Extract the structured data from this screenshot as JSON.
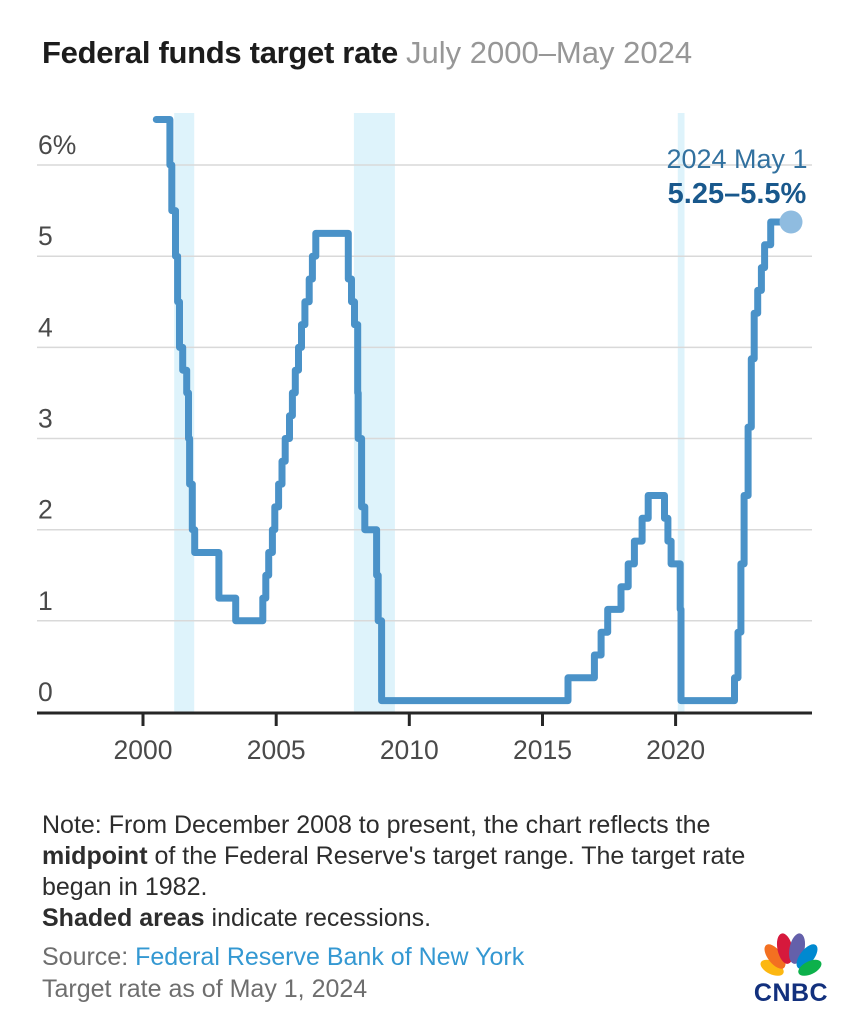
{
  "header": {
    "title": "Federal funds target rate",
    "subtitle": "July 2000–May 2024"
  },
  "chart_data": {
    "type": "line",
    "step": true,
    "title": "Federal funds target rate",
    "subtitle": "July 2000–May 2024",
    "xlabel": "",
    "ylabel": "",
    "x_range": [
      1996.02,
      2025.12
    ],
    "ylim": [
      0,
      6.56
    ],
    "grid": "horizontal",
    "x_axis": {
      "ticks": [
        {
          "value": 2000,
          "label": "2000"
        },
        {
          "value": 2005,
          "label": "2005"
        },
        {
          "value": 2010,
          "label": "2010"
        },
        {
          "value": 2015,
          "label": "2015"
        },
        {
          "value": 2020,
          "label": "2020"
        }
      ]
    },
    "y_axis": {
      "ticks": [
        {
          "value": 6,
          "label": "6%"
        },
        {
          "value": 5,
          "label": "5"
        },
        {
          "value": 4,
          "label": "4"
        },
        {
          "value": 3,
          "label": "3"
        },
        {
          "value": 2,
          "label": "2"
        },
        {
          "value": 1,
          "label": "1"
        },
        {
          "value": 0,
          "label": "0"
        }
      ]
    },
    "series": [
      {
        "name": "Federal funds target rate (midpoint of range from Dec 2008)",
        "points": [
          [
            2000.5,
            6.5
          ],
          [
            2001.01,
            6.0
          ],
          [
            2001.08,
            5.5
          ],
          [
            2001.22,
            5.0
          ],
          [
            2001.3,
            4.5
          ],
          [
            2001.37,
            4.0
          ],
          [
            2001.49,
            3.75
          ],
          [
            2001.64,
            3.5
          ],
          [
            2001.71,
            3.0
          ],
          [
            2001.75,
            2.5
          ],
          [
            2001.85,
            2.0
          ],
          [
            2001.94,
            1.75
          ],
          [
            2002.85,
            1.25
          ],
          [
            2003.48,
            1.0
          ],
          [
            2004.5,
            1.25
          ],
          [
            2004.61,
            1.5
          ],
          [
            2004.72,
            1.75
          ],
          [
            2004.86,
            2.0
          ],
          [
            2004.95,
            2.25
          ],
          [
            2005.09,
            2.5
          ],
          [
            2005.22,
            2.75
          ],
          [
            2005.34,
            3.0
          ],
          [
            2005.5,
            3.25
          ],
          [
            2005.61,
            3.5
          ],
          [
            2005.72,
            3.75
          ],
          [
            2005.84,
            4.0
          ],
          [
            2005.95,
            4.25
          ],
          [
            2006.08,
            4.5
          ],
          [
            2006.24,
            4.75
          ],
          [
            2006.36,
            5.0
          ],
          [
            2006.49,
            5.25
          ],
          [
            2007.71,
            4.75
          ],
          [
            2007.83,
            4.5
          ],
          [
            2007.94,
            4.25
          ],
          [
            2008.06,
            3.5
          ],
          [
            2008.08,
            3.0
          ],
          [
            2008.21,
            2.25
          ],
          [
            2008.33,
            2.0
          ],
          [
            2008.77,
            1.5
          ],
          [
            2008.83,
            1.0
          ],
          [
            2008.96,
            0.125
          ],
          [
            2015.96,
            0.375
          ],
          [
            2016.95,
            0.625
          ],
          [
            2017.2,
            0.875
          ],
          [
            2017.45,
            1.125
          ],
          [
            2017.95,
            1.375
          ],
          [
            2018.22,
            1.625
          ],
          [
            2018.45,
            1.875
          ],
          [
            2018.74,
            2.125
          ],
          [
            2018.97,
            2.375
          ],
          [
            2019.58,
            2.125
          ],
          [
            2019.71,
            1.875
          ],
          [
            2019.83,
            1.625
          ],
          [
            2020.17,
            1.125
          ],
          [
            2020.2,
            0.125
          ],
          [
            2022.21,
            0.375
          ],
          [
            2022.34,
            0.875
          ],
          [
            2022.45,
            1.625
          ],
          [
            2022.57,
            2.375
          ],
          [
            2022.72,
            3.125
          ],
          [
            2022.84,
            3.875
          ],
          [
            2022.95,
            4.375
          ],
          [
            2023.08,
            4.625
          ],
          [
            2023.22,
            4.875
          ],
          [
            2023.34,
            5.125
          ],
          [
            2023.57,
            5.375
          ]
        ]
      }
    ],
    "end_point": {
      "x": 2024.33,
      "y": 5.375
    },
    "annotation": {
      "line1": "2024 May 1",
      "line2": "5.25–5.5%"
    },
    "recessions": [
      {
        "start": 2001.17,
        "end": 2001.92
      },
      {
        "start": 2007.92,
        "end": 2009.46
      },
      {
        "start": 2020.08,
        "end": 2020.33
      }
    ],
    "legend": "none",
    "colors": {
      "line": "#4a92c8",
      "end_dot": "#8fbce0",
      "recession_band": "#def3fb",
      "gridline": "#d9d9d9",
      "axis": "#262626",
      "tick_label": "#4a4a4a",
      "annotation_date": "#32719f",
      "annotation_rate": "#19588c"
    }
  },
  "note": {
    "prefix": "Note: From December 2008 to present, the chart reflects the ",
    "bold1": "midpoint",
    "suffix": " of the Federal Reserve's target range. The target rate began in 1982.",
    "bold2": "Shaded areas",
    "suffix2": " indicate recessions."
  },
  "source": {
    "label": "Source: ",
    "link": "Federal Reserve Bank of New York",
    "asof": "Target rate as of May 1, 2024"
  },
  "logo": {
    "text": "CNBC"
  }
}
